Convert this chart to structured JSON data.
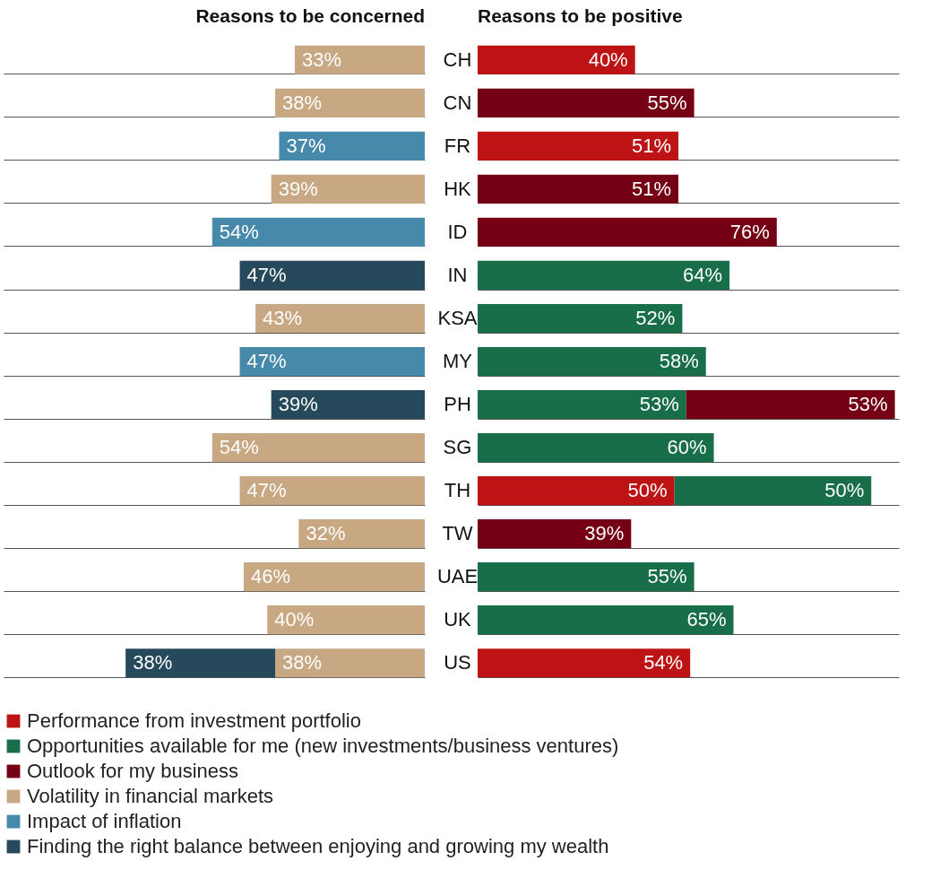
{
  "chart_data": [
    {
      "type": "bar",
      "orientation": "horizontal",
      "stacked": true,
      "title": "Reasons to be concerned",
      "categories": [
        "CH",
        "CN",
        "FR",
        "HK",
        "ID",
        "IN",
        "KSA",
        "MY",
        "PH",
        "SG",
        "TH",
        "TW",
        "UAE",
        "UK",
        "US"
      ],
      "xlim": [
        107,
        0
      ],
      "grid": "y",
      "legend": "bottom",
      "tick_labels": "y",
      "series": [
        {
          "name": "Volatility in financial markets",
          "color": "#c8a783",
          "values": [
            33,
            38,
            null,
            39,
            null,
            null,
            43,
            null,
            null,
            54,
            47,
            32,
            46,
            40,
            38
          ],
          "value_labels": [
            "33%",
            "38%",
            null,
            "39%",
            null,
            null,
            "43%",
            null,
            null,
            "54%",
            "47%",
            "32%",
            "46%",
            "40%",
            "38%"
          ]
        },
        {
          "name": "Impact of inflation",
          "color": "#4689ab",
          "values": [
            null,
            null,
            37,
            null,
            54,
            null,
            null,
            47,
            null,
            null,
            null,
            null,
            null,
            null,
            null
          ],
          "value_labels": [
            null,
            null,
            "37%",
            null,
            "54%",
            null,
            null,
            "47%",
            null,
            null,
            null,
            null,
            null,
            null,
            null
          ]
        },
        {
          "name": "Finding the right balance between enjoying and growing my wealth",
          "color": "#26495c",
          "values": [
            null,
            null,
            null,
            null,
            null,
            47,
            null,
            null,
            39,
            null,
            null,
            null,
            null,
            null,
            38
          ],
          "value_labels": [
            null,
            null,
            null,
            null,
            null,
            "47%",
            null,
            null,
            "39%",
            null,
            null,
            null,
            null,
            null,
            "38%"
          ]
        }
      ]
    },
    {
      "type": "bar",
      "orientation": "horizontal",
      "stacked": true,
      "title": "Reasons to be positive",
      "xlim": [
        0,
        107
      ],
      "grid": "y",
      "legend": "bottom",
      "tick_labels": false,
      "series": [
        {
          "name": "Performance from investment portfolio",
          "color": "#be1314",
          "values": [
            40,
            null,
            51,
            null,
            null,
            null,
            null,
            null,
            null,
            null,
            50,
            null,
            null,
            null,
            54
          ],
          "value_labels": [
            "40%",
            null,
            "51%",
            null,
            null,
            null,
            null,
            null,
            null,
            null,
            "50%",
            null,
            null,
            null,
            "54%"
          ]
        },
        {
          "name": "Opportunities available for me (new investments/business ventures)",
          "color": "#196e4a",
          "values": [
            null,
            null,
            null,
            null,
            null,
            64,
            52,
            58,
            53,
            60,
            50,
            null,
            55,
            65,
            null
          ],
          "value_labels": [
            null,
            null,
            null,
            null,
            null,
            "64%",
            "52%",
            "58%",
            "53%",
            "60%",
            "50%",
            null,
            "55%",
            "65%",
            null
          ]
        },
        {
          "name": "Outlook for my business",
          "color": "#750015",
          "values": [
            null,
            55,
            null,
            51,
            76,
            null,
            null,
            null,
            53,
            null,
            null,
            39,
            null,
            null,
            null
          ],
          "value_labels": [
            null,
            "55%",
            null,
            "51%",
            "76%",
            null,
            null,
            null,
            "53%",
            null,
            null,
            "39%",
            null,
            null,
            null
          ]
        }
      ]
    }
  ]
}
